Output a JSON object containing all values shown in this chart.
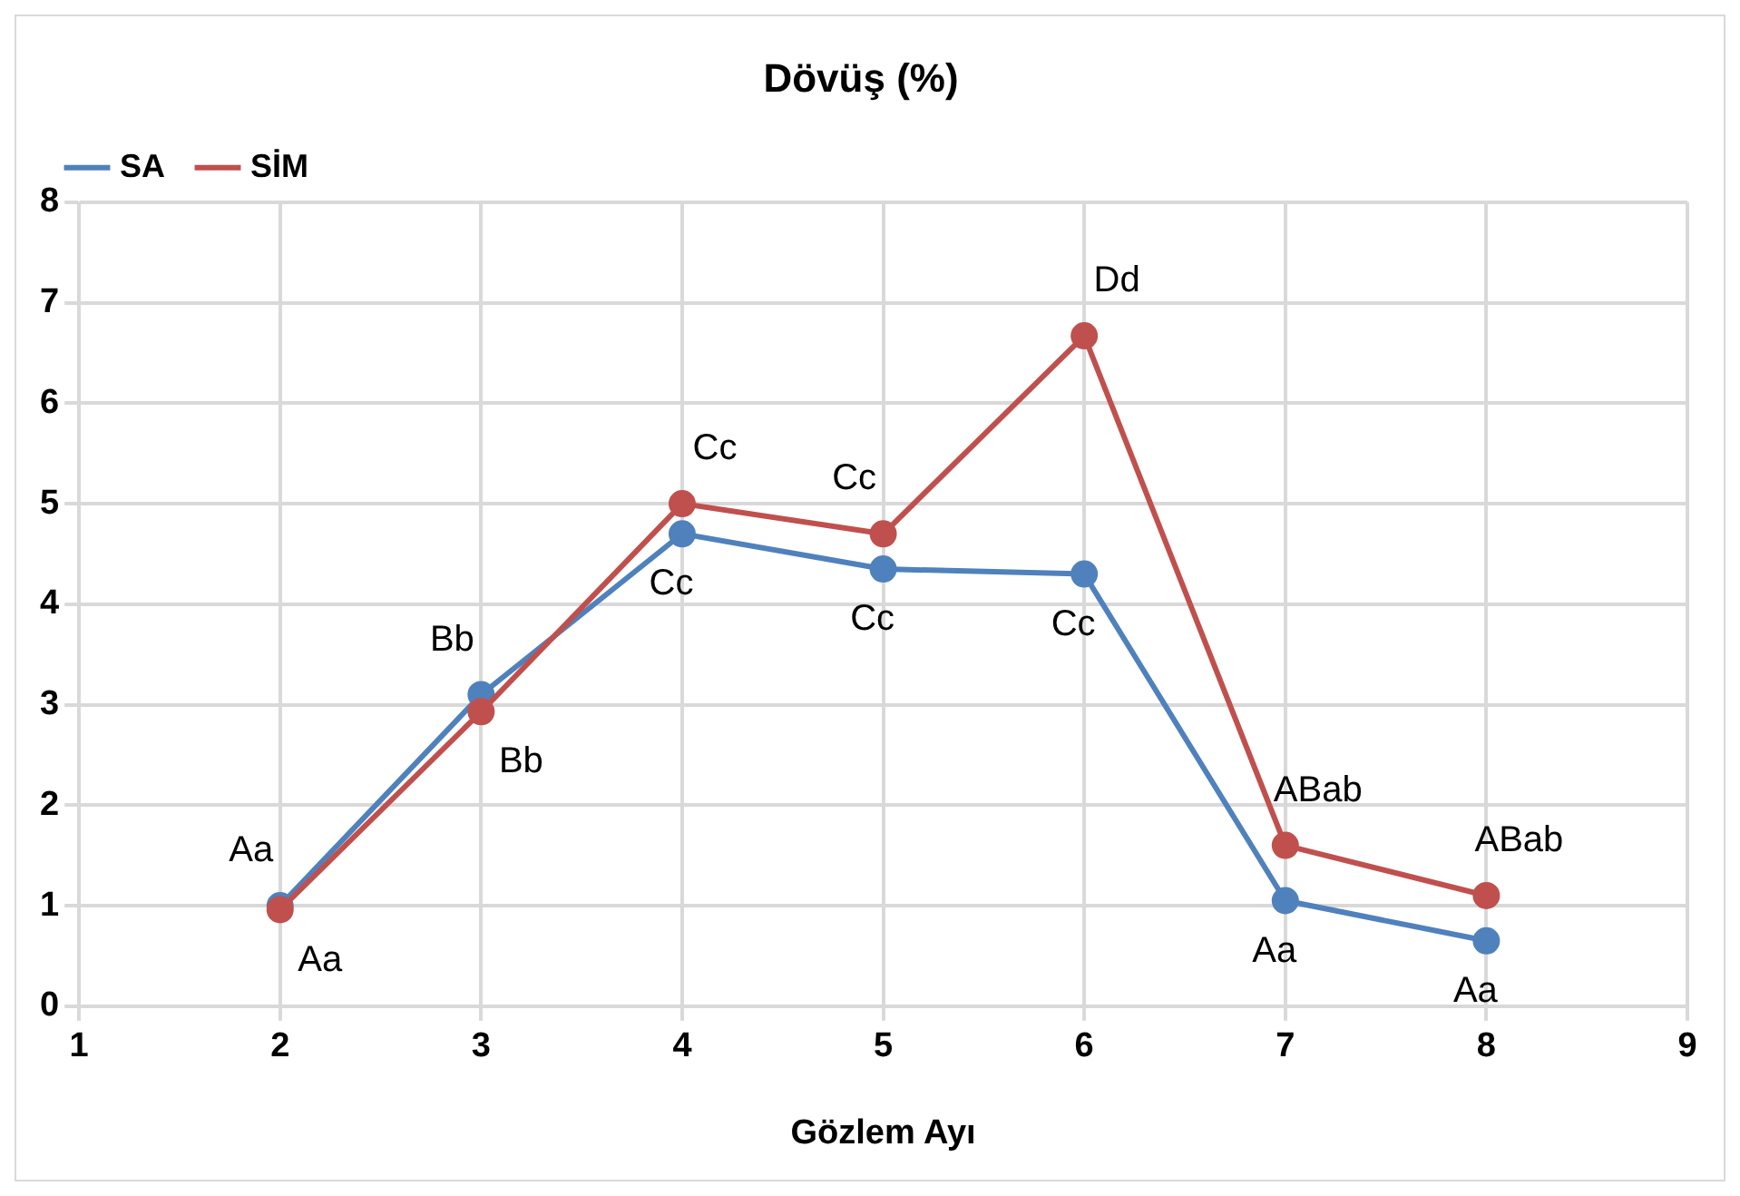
{
  "chart_data": {
    "type": "line",
    "title": "Dövüş (%)",
    "xlabel": "Gözlem Ayı",
    "x": [
      2,
      3,
      4,
      5,
      6,
      7,
      8
    ],
    "series": [
      {
        "name": "SA",
        "color": "#4f81bd",
        "values": [
          1.0,
          3.1,
          4.7,
          4.35,
          4.3,
          1.05,
          0.65
        ]
      },
      {
        "name": "SİM",
        "color": "#c0504d",
        "values": [
          0.96,
          2.93,
          5.0,
          4.7,
          6.67,
          1.6,
          1.1
        ]
      }
    ],
    "xlim": [
      1,
      9
    ],
    "xticks": [
      1,
      2,
      3,
      4,
      5,
      6,
      7,
      8,
      9
    ],
    "ylim": [
      0,
      8
    ],
    "yticks": [
      0,
      1,
      2,
      3,
      4,
      5,
      6,
      7,
      8
    ],
    "grid": true,
    "legend": "top left",
    "marker": "circle",
    "line_style": "solid",
    "annotations": [
      {
        "text": "Aa",
        "x": 2,
        "y": 1.0
      },
      {
        "text": "Aa",
        "x": 2,
        "y": 0.96
      },
      {
        "text": "Bb",
        "x": 3,
        "y": 3.1
      },
      {
        "text": "Bb",
        "x": 3,
        "y": 2.93
      },
      {
        "text": "Cc",
        "x": 4,
        "y": 5.0
      },
      {
        "text": "Cc",
        "x": 4,
        "y": 4.7
      },
      {
        "text": "Cc",
        "x": 5,
        "y": 4.7
      },
      {
        "text": "Cc",
        "x": 5,
        "y": 4.35
      },
      {
        "text": "Cc",
        "x": 6,
        "y": 4.3
      },
      {
        "text": "Dd",
        "x": 6,
        "y": 6.67
      },
      {
        "text": "ABab",
        "x": 7,
        "y": 1.6
      },
      {
        "text": "Aa",
        "x": 7,
        "y": 1.05
      },
      {
        "text": "ABab",
        "x": 8,
        "y": 1.1
      },
      {
        "text": "Aa",
        "x": 8,
        "y": 0.65
      }
    ]
  }
}
